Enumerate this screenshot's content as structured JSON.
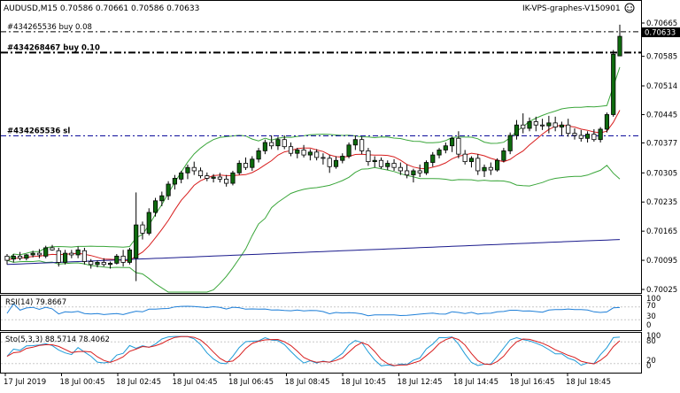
{
  "header": {
    "symbol_info": "AUDUSD,M15  0.70586 0.70661 0.70586 0.70633",
    "server_label": "IK-VPS-graphes-V150901",
    "smiley_icon": "smiley-icon"
  },
  "orders": [
    {
      "label": "#434265536 buy 0.08",
      "price": 0.70644,
      "style": "dashdot-thin"
    },
    {
      "label": "#434268467 buy 0.10",
      "price": 0.70594,
      "style": "dashdot-thick"
    },
    {
      "label": "#434265536 sl",
      "price": 0.70394,
      "style": "dashdot-blue"
    }
  ],
  "price_axis": {
    "ticks": [
      "0.70665",
      "0.70585",
      "0.70514",
      "0.70445",
      "0.70377",
      "0.70305",
      "0.70235",
      "0.70165",
      "0.70095",
      "0.70025"
    ],
    "current_price": "0.70633"
  },
  "time_axis": {
    "ticks": [
      "17 Jul 2019",
      "18 Jul 00:45",
      "18 Jul 02:45",
      "18 Jul 04:45",
      "18 Jul 06:45",
      "18 Jul 08:45",
      "18 Jul 10:45",
      "18 Jul 12:45",
      "18 Jul 14:45",
      "18 Jul 16:45",
      "18 Jul 18:45"
    ]
  },
  "rsi": {
    "label": "RSI(14) 79.8667",
    "levels": [
      "100",
      "70",
      "30",
      "0"
    ]
  },
  "stoch": {
    "label": "Sto(5,3,3) 88.5714 78.4062",
    "levels": [
      "100",
      "80",
      "20",
      "0"
    ]
  },
  "colors": {
    "bull": "#0e6b0e",
    "bear": "#000000",
    "bb": "#3aa63a",
    "ma_fast": "#d81e1e",
    "ma_slow": "#1a1a8c",
    "rsi_line": "#1e7fd8",
    "sto_main": "#1e9bd8",
    "sto_signal": "#d81e1e",
    "grid": "#c8c8c8"
  },
  "chart_data": {
    "type": "candlestick",
    "symbol": "AUDUSD",
    "timeframe": "M15",
    "candles": [
      [
        0.70105,
        0.7011,
        0.70085,
        0.70095
      ],
      [
        0.70098,
        0.7011,
        0.7009,
        0.70105
      ],
      [
        0.70105,
        0.70115,
        0.70095,
        0.701
      ],
      [
        0.701,
        0.7011,
        0.70095,
        0.70108
      ],
      [
        0.70108,
        0.70118,
        0.70102,
        0.70112
      ],
      [
        0.70112,
        0.70122,
        0.701,
        0.70108
      ],
      [
        0.70105,
        0.7013,
        0.701,
        0.70125
      ],
      [
        0.70125,
        0.70132,
        0.70118,
        0.7012
      ],
      [
        0.70118,
        0.70125,
        0.7008,
        0.7009
      ],
      [
        0.7009,
        0.7012,
        0.70085,
        0.70112
      ],
      [
        0.70112,
        0.7012,
        0.701,
        0.70108
      ],
      [
        0.70108,
        0.70128,
        0.701,
        0.7012
      ],
      [
        0.70118,
        0.70125,
        0.70085,
        0.70092
      ],
      [
        0.70092,
        0.70098,
        0.70075,
        0.70085
      ],
      [
        0.70085,
        0.70095,
        0.70078,
        0.7009
      ],
      [
        0.7009,
        0.701,
        0.7008,
        0.70085
      ],
      [
        0.70085,
        0.70092,
        0.70075,
        0.70088
      ],
      [
        0.70088,
        0.7011,
        0.70085,
        0.70105
      ],
      [
        0.70105,
        0.7012,
        0.7008,
        0.7009
      ],
      [
        0.7009,
        0.70125,
        0.70085,
        0.7012
      ],
      [
        0.701,
        0.70258,
        0.70045,
        0.7018
      ],
      [
        0.7018,
        0.70188,
        0.70145,
        0.7016
      ],
      [
        0.7016,
        0.7022,
        0.70155,
        0.7021
      ],
      [
        0.7021,
        0.70245,
        0.702,
        0.70238
      ],
      [
        0.70238,
        0.7026,
        0.70225,
        0.7025
      ],
      [
        0.7025,
        0.70285,
        0.7024,
        0.70278
      ],
      [
        0.70278,
        0.703,
        0.70265,
        0.70292
      ],
      [
        0.7029,
        0.7031,
        0.7028,
        0.70305
      ],
      [
        0.70305,
        0.70325,
        0.7029,
        0.70318
      ],
      [
        0.70318,
        0.70332,
        0.703,
        0.7031
      ],
      [
        0.7031,
        0.70318,
        0.70292,
        0.70298
      ],
      [
        0.70298,
        0.70306,
        0.70285,
        0.70292
      ],
      [
        0.70292,
        0.70302,
        0.70282,
        0.70295
      ],
      [
        0.70295,
        0.70305,
        0.70282,
        0.7029
      ],
      [
        0.7029,
        0.703,
        0.70272,
        0.7028
      ],
      [
        0.7028,
        0.7031,
        0.70275,
        0.70305
      ],
      [
        0.70305,
        0.70335,
        0.703,
        0.70328
      ],
      [
        0.70328,
        0.70342,
        0.70312,
        0.70318
      ],
      [
        0.70318,
        0.70345,
        0.7031,
        0.70338
      ],
      [
        0.70338,
        0.70365,
        0.7033,
        0.70358
      ],
      [
        0.70358,
        0.70385,
        0.7035,
        0.70378
      ],
      [
        0.70378,
        0.70395,
        0.70362,
        0.7037
      ],
      [
        0.7037,
        0.70392,
        0.7036,
        0.70385
      ],
      [
        0.70385,
        0.70395,
        0.70362,
        0.70368
      ],
      [
        0.70368,
        0.70378,
        0.70345,
        0.70352
      ],
      [
        0.70352,
        0.70365,
        0.7034,
        0.7036
      ],
      [
        0.7036,
        0.70372,
        0.70342,
        0.70348
      ],
      [
        0.70348,
        0.70362,
        0.70335,
        0.70355
      ],
      [
        0.70355,
        0.70362,
        0.70335,
        0.70342
      ],
      [
        0.70342,
        0.70352,
        0.70325,
        0.7034
      ],
      [
        0.7034,
        0.70348,
        0.70305,
        0.7032
      ],
      [
        0.7032,
        0.70345,
        0.70315,
        0.70335
      ],
      [
        0.70335,
        0.70352,
        0.70328,
        0.70345
      ],
      [
        0.70345,
        0.70378,
        0.7034,
        0.70372
      ],
      [
        0.70372,
        0.70395,
        0.7036,
        0.70385
      ],
      [
        0.70385,
        0.70392,
        0.7035,
        0.70358
      ],
      [
        0.70358,
        0.70365,
        0.70322,
        0.70332
      ],
      [
        0.70332,
        0.70345,
        0.70318,
        0.70335
      ],
      [
        0.70335,
        0.70342,
        0.70315,
        0.7032
      ],
      [
        0.7032,
        0.70335,
        0.70312,
        0.70328
      ],
      [
        0.70328,
        0.70338,
        0.7031,
        0.70318
      ],
      [
        0.70318,
        0.7033,
        0.703,
        0.7031
      ],
      [
        0.7031,
        0.70325,
        0.70292,
        0.703
      ],
      [
        0.703,
        0.70315,
        0.70282,
        0.7031
      ],
      [
        0.7031,
        0.70325,
        0.70295,
        0.70305
      ],
      [
        0.70305,
        0.70335,
        0.703,
        0.7033
      ],
      [
        0.7033,
        0.70355,
        0.7032,
        0.70348
      ],
      [
        0.70348,
        0.70365,
        0.7034,
        0.7036
      ],
      [
        0.7036,
        0.70378,
        0.70352,
        0.7037
      ],
      [
        0.7037,
        0.70392,
        0.70355,
        0.70388
      ],
      [
        0.70388,
        0.70405,
        0.7034,
        0.7035
      ],
      [
        0.7035,
        0.7036,
        0.70325,
        0.70332
      ],
      [
        0.70332,
        0.70345,
        0.70318,
        0.7034
      ],
      [
        0.7034,
        0.7035,
        0.703,
        0.7031
      ],
      [
        0.7031,
        0.70325,
        0.70295,
        0.70318
      ],
      [
        0.70318,
        0.7033,
        0.703,
        0.70312
      ],
      [
        0.70312,
        0.7034,
        0.70308,
        0.70335
      ],
      [
        0.70335,
        0.70365,
        0.7033,
        0.70358
      ],
      [
        0.70358,
        0.70402,
        0.7035,
        0.70395
      ],
      [
        0.70395,
        0.70432,
        0.70385,
        0.7042
      ],
      [
        0.7042,
        0.70448,
        0.704,
        0.70412
      ],
      [
        0.70412,
        0.70438,
        0.70405,
        0.70428
      ],
      [
        0.70428,
        0.7044,
        0.70405,
        0.7042
      ],
      [
        0.7042,
        0.70435,
        0.70408,
        0.70418
      ],
      [
        0.70418,
        0.70442,
        0.704,
        0.70425
      ],
      [
        0.70425,
        0.7044,
        0.70405,
        0.70415
      ],
      [
        0.70415,
        0.70428,
        0.70395,
        0.7042
      ],
      [
        0.7042,
        0.70435,
        0.70392,
        0.704
      ],
      [
        0.704,
        0.70412,
        0.70385,
        0.70395
      ],
      [
        0.70395,
        0.70408,
        0.7038,
        0.70388
      ],
      [
        0.70388,
        0.70405,
        0.70378,
        0.70398
      ],
      [
        0.70398,
        0.7041,
        0.7038,
        0.70385
      ],
      [
        0.70385,
        0.70415,
        0.70378,
        0.7041
      ],
      [
        0.7041,
        0.7045,
        0.70402,
        0.70445
      ],
      [
        0.70445,
        0.706,
        0.7044,
        0.7059
      ],
      [
        0.70586,
        0.70661,
        0.70586,
        0.70633
      ]
    ]
  }
}
